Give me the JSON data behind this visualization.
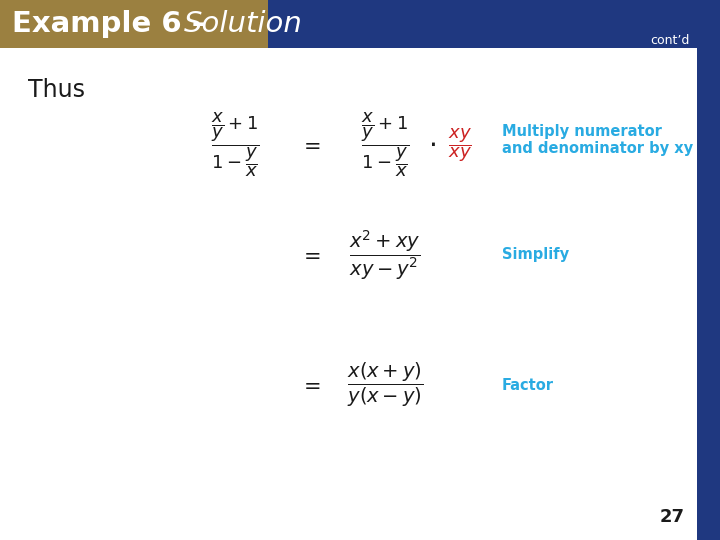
{
  "title_bold": "Example 6 – ",
  "title_italic": "Solution",
  "contd": "cont’d",
  "thus": "Thus",
  "bg_color": "#ffffff",
  "header_gold_color": "#9B8040",
  "header_blue_color": "#1F3880",
  "header_text_color": "#ffffff",
  "label_color": "#29ABE2",
  "fraction_color": "#1a1a1a",
  "xy_red_color": "#CC2222",
  "page_number": "27",
  "right_bar_color": "#1F3880",
  "annotations": [
    "Multiply numerator\nand denominator by xy",
    "Simplify",
    "Factor"
  ]
}
